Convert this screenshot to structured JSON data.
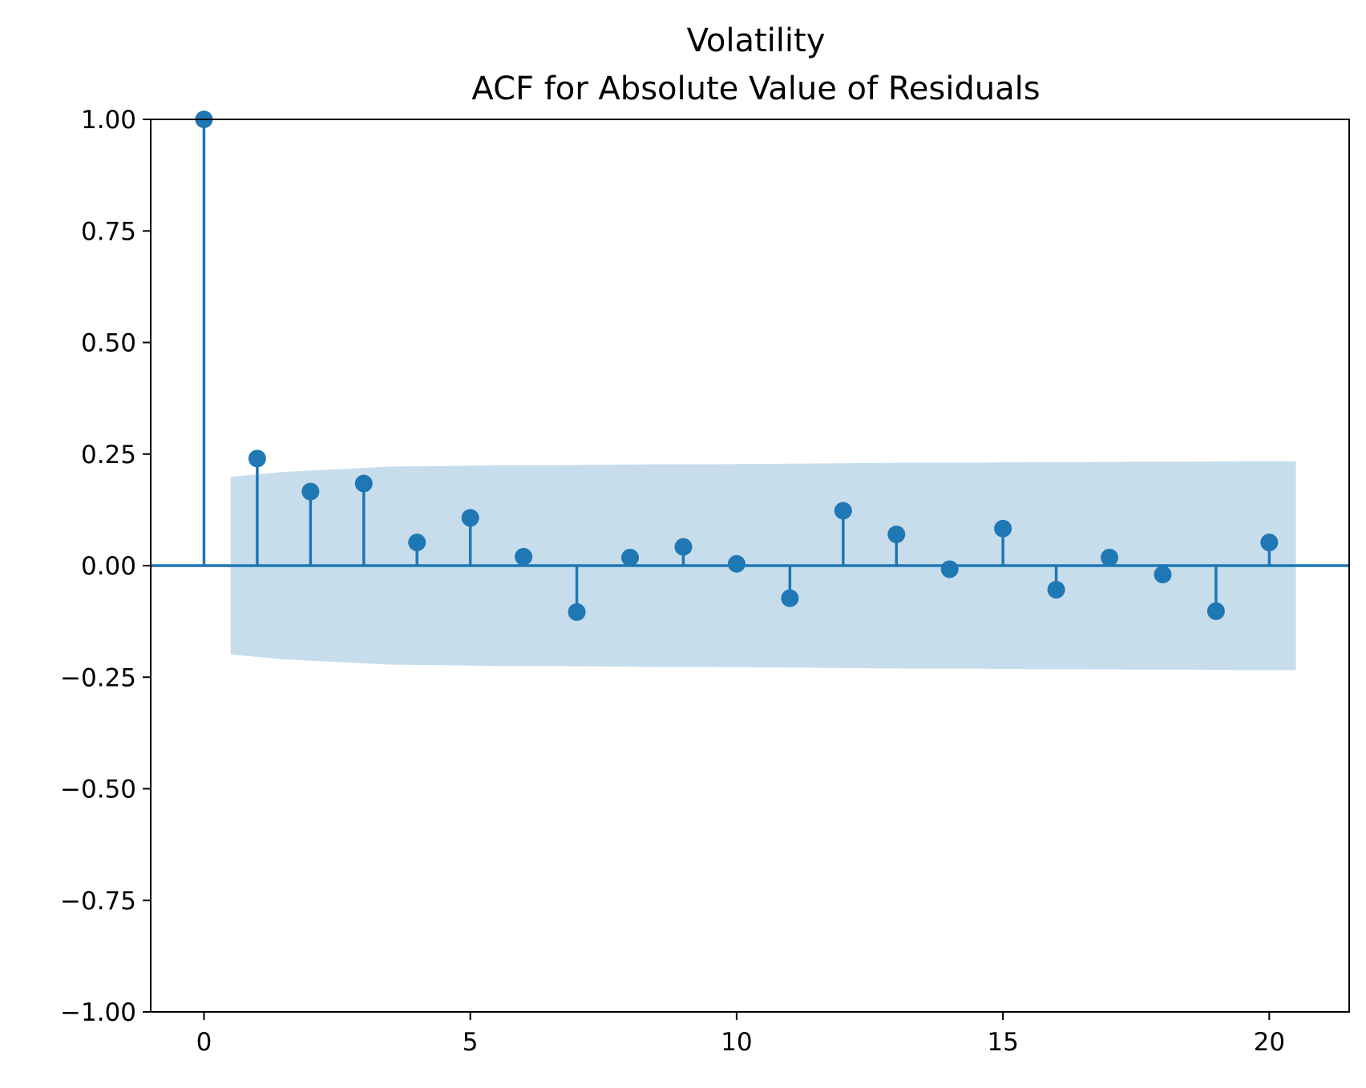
{
  "chart_data": {
    "type": "stem",
    "title": "Volatility",
    "subtitle": "ACF for Absolute Value of Residuals",
    "xlabel": "",
    "ylabel": "",
    "xlim": [
      -1,
      21.5
    ],
    "ylim": [
      -1,
      1
    ],
    "grid": false,
    "x_ticks": [
      0,
      5,
      10,
      15,
      20
    ],
    "x_tick_labels": [
      "0",
      "5",
      "10",
      "15",
      "20"
    ],
    "y_ticks": [
      1,
      0.75,
      0.5,
      0.25,
      0,
      -0.25,
      -0.5,
      -0.75,
      -1
    ],
    "y_tick_labels": [
      "1.00",
      "0.75",
      "0.50",
      "0.25",
      "0.00",
      "−0.25",
      "−0.50",
      "−0.75",
      "−1.00"
    ],
    "lags": [
      0,
      1,
      2,
      3,
      4,
      5,
      6,
      7,
      8,
      9,
      10,
      11,
      12,
      13,
      14,
      15,
      16,
      17,
      18,
      19,
      20
    ],
    "acf": [
      1.0,
      0.24,
      0.166,
      0.184,
      0.052,
      0.107,
      0.02,
      -0.104,
      0.018,
      0.042,
      0.004,
      -0.073,
      0.123,
      0.07,
      -0.008,
      0.083,
      -0.054,
      0.018,
      -0.02,
      -0.102,
      0.052
    ],
    "confidence_band": {
      "x": [
        0.5,
        1.5,
        2.5,
        3.5,
        4.5,
        5.5,
        6.5,
        7.5,
        8.5,
        9.5,
        10.5,
        11.5,
        12.5,
        13.5,
        14.5,
        15.5,
        16.5,
        17.5,
        18.5,
        19.5,
        20.5
      ],
      "upper": [
        0.199,
        0.21,
        0.216,
        0.222,
        0.223,
        0.225,
        0.225,
        0.226,
        0.227,
        0.227,
        0.228,
        0.229,
        0.23,
        0.231,
        0.231,
        0.232,
        0.232,
        0.233,
        0.233,
        0.234,
        0.234
      ]
    },
    "colors": {
      "stem": "#1f77b4",
      "band": "#1f77b4",
      "band_opacity": 0.25,
      "axes": "#000000"
    }
  }
}
